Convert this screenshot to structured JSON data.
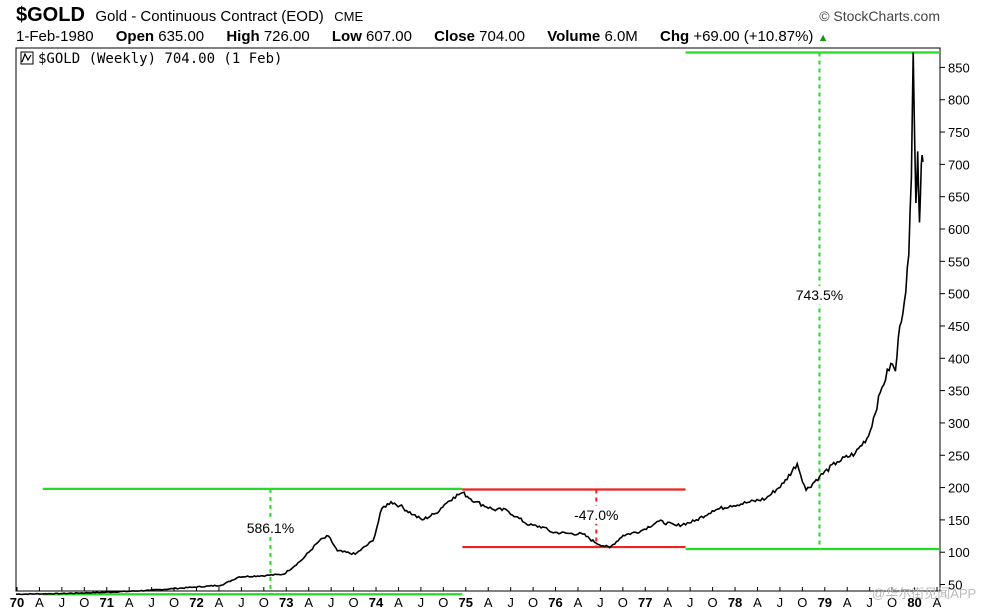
{
  "header": {
    "symbol": "$GOLD",
    "description": "Gold - Continuous Contract (EOD)",
    "exchange": "CME",
    "credit": "© StockCharts.com",
    "date": "1-Feb-1980",
    "open_label": "Open",
    "open": "635.00",
    "high_label": "High",
    "high": "726.00",
    "low_label": "Low",
    "low": "607.00",
    "close_label": "Close",
    "close": "704.00",
    "volume_label": "Volume",
    "volume": "6.0M",
    "chg_label": "Chg",
    "chg": "+69.00 (+10.87%)"
  },
  "legend": "$GOLD (Weekly) 704.00 (1 Feb)",
  "watermark": "@华尔街见闻APP",
  "colors": {
    "price": "#000000",
    "green": "#22dd22",
    "red": "#ee2222",
    "grid": "#000000"
  },
  "chart_data": {
    "type": "line",
    "ylim": [
      40,
      880
    ],
    "yticks": [
      50,
      100,
      150,
      200,
      250,
      300,
      350,
      400,
      450,
      500,
      550,
      600,
      650,
      700,
      750,
      800,
      850
    ],
    "xlabels": [
      "70",
      "A",
      "J",
      "O",
      "71",
      "A",
      "J",
      "O",
      "72",
      "A",
      "J",
      "O",
      "73",
      "A",
      "J",
      "O",
      "74",
      "A",
      "J",
      "O",
      "75",
      "A",
      "J",
      "O",
      "76",
      "A",
      "J",
      "O",
      "77",
      "A",
      "J",
      "O",
      "78",
      "A",
      "J",
      "O",
      "79",
      "A",
      "J",
      "O",
      "80",
      "A"
    ],
    "xbold": [
      "70",
      "71",
      "72",
      "73",
      "74",
      "75",
      "76",
      "77",
      "78",
      "79",
      "80"
    ],
    "series": [
      {
        "values": [
          [
            1970.0,
            35
          ],
          [
            1970.5,
            36
          ],
          [
            1971.0,
            38
          ],
          [
            1971.5,
            41
          ],
          [
            1972.0,
            46
          ],
          [
            1972.3,
            49
          ],
          [
            1972.5,
            62
          ],
          [
            1972.8,
            64
          ],
          [
            1973.0,
            66
          ],
          [
            1973.2,
            88
          ],
          [
            1973.4,
            118
          ],
          [
            1973.5,
            125
          ],
          [
            1973.6,
            102
          ],
          [
            1973.8,
            97
          ],
          [
            1974.0,
            118
          ],
          [
            1974.1,
            168
          ],
          [
            1974.2,
            178
          ],
          [
            1974.3,
            172
          ],
          [
            1974.45,
            158
          ],
          [
            1974.55,
            150
          ],
          [
            1974.7,
            160
          ],
          [
            1974.8,
            174
          ],
          [
            1974.9,
            185
          ],
          [
            1975.0,
            192
          ],
          [
            1975.15,
            178
          ],
          [
            1975.35,
            166
          ],
          [
            1975.5,
            165
          ],
          [
            1975.6,
            155
          ],
          [
            1975.75,
            142
          ],
          [
            1975.9,
            139
          ],
          [
            1976.0,
            131
          ],
          [
            1976.2,
            129
          ],
          [
            1976.35,
            128
          ],
          [
            1976.5,
            114
          ],
          [
            1976.65,
            107
          ],
          [
            1976.8,
            126
          ],
          [
            1977.0,
            133
          ],
          [
            1977.2,
            148
          ],
          [
            1977.4,
            141
          ],
          [
            1977.6,
            148
          ],
          [
            1977.8,
            164
          ],
          [
            1978.0,
            172
          ],
          [
            1978.2,
            177
          ],
          [
            1978.4,
            183
          ],
          [
            1978.6,
            207
          ],
          [
            1978.75,
            237
          ],
          [
            1978.85,
            196
          ],
          [
            1979.0,
            217
          ],
          [
            1979.2,
            240
          ],
          [
            1979.4,
            253
          ],
          [
            1979.55,
            280
          ],
          [
            1979.7,
            355
          ],
          [
            1979.8,
            392
          ],
          [
            1979.85,
            380
          ],
          [
            1979.9,
            450
          ],
          [
            1979.95,
            487
          ],
          [
            1980.0,
            560
          ],
          [
            1980.03,
            680
          ],
          [
            1980.05,
            873
          ],
          [
            1980.08,
            640
          ],
          [
            1980.1,
            720
          ],
          [
            1980.12,
            610
          ],
          [
            1980.14,
            700
          ],
          [
            1980.16,
            704
          ]
        ]
      }
    ],
    "annotations": [
      {
        "label": "586.1%",
        "x": 1972.85,
        "y": 130,
        "color": "green",
        "y1": 35,
        "y2": 198,
        "x1": 1970.3,
        "x2": 1975.0
      },
      {
        "label": "-47.0%",
        "x": 1976.5,
        "y": 150,
        "color": "red",
        "y1": 108,
        "y2": 197,
        "x1": 1975.0,
        "x2": 1977.5
      },
      {
        "label": "743.5%",
        "x": 1979.0,
        "y": 490,
        "color": "green",
        "y1": 105,
        "y2": 873,
        "x1": 1977.5,
        "x2": 1980.35
      }
    ]
  }
}
